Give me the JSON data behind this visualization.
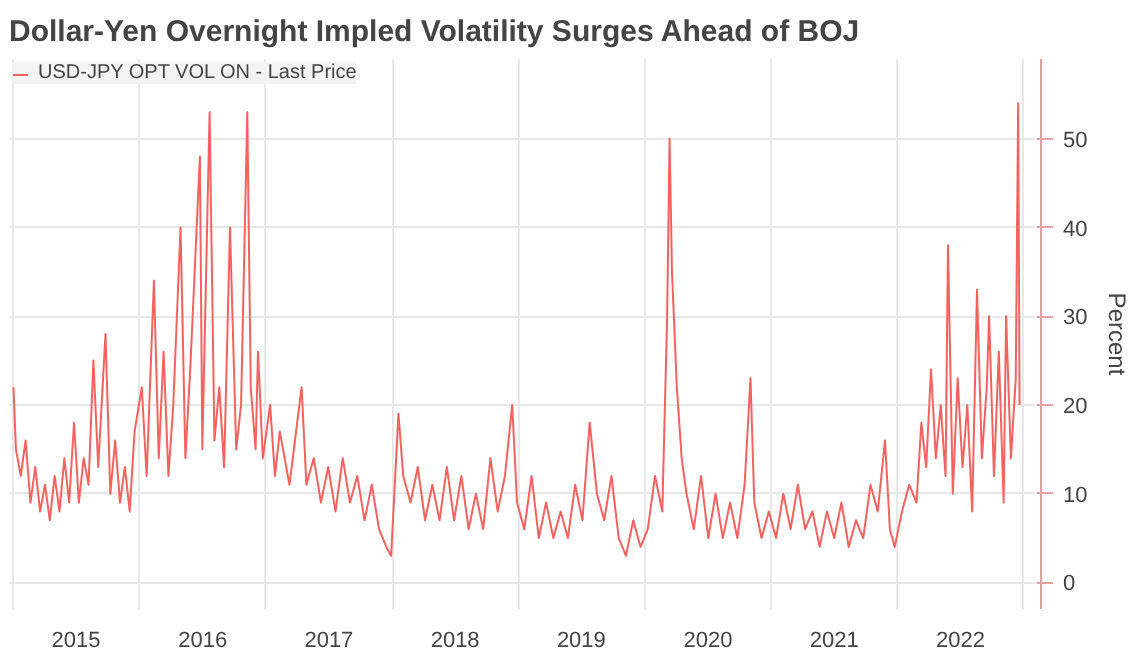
{
  "chart_data": {
    "type": "line",
    "title": "Dollar-Yen Overnight Impled Volatility Surges Ahead of BOJ",
    "ylabel": "Percent",
    "xlim": [
      "2014-12-20",
      "2023-02-20"
    ],
    "ylim": [
      -3,
      59
    ],
    "yticks": [
      0,
      10,
      20,
      30,
      40,
      50
    ],
    "xticks": [
      {
        "value": "2015-01-01",
        "label": null
      },
      {
        "value": "2015-07-02",
        "label": "2015"
      },
      {
        "value": "2016-01-01",
        "label": null
      },
      {
        "value": "2016-07-02",
        "label": "2016"
      },
      {
        "value": "2017-01-01",
        "label": null
      },
      {
        "value": "2017-07-02",
        "label": "2017"
      },
      {
        "value": "2018-01-01",
        "label": null
      },
      {
        "value": "2018-07-02",
        "label": "2018"
      },
      {
        "value": "2019-01-01",
        "label": null
      },
      {
        "value": "2019-07-02",
        "label": "2019"
      },
      {
        "value": "2020-01-01",
        "label": null
      },
      {
        "value": "2020-07-02",
        "label": "2020"
      },
      {
        "value": "2021-01-01",
        "label": null
      },
      {
        "value": "2021-07-02",
        "label": "2021"
      },
      {
        "value": "2022-01-01",
        "label": null
      },
      {
        "value": "2022-07-02",
        "label": "2022"
      },
      {
        "value": "2023-01-01",
        "label": null
      }
    ],
    "grid": true,
    "legend": "top left",
    "line_style": "solid",
    "marker": "none",
    "series": [
      {
        "name": "USD-JPY OPT VOL ON - Last Price",
        "color": "#f4625f",
        "x": [
          "2015-01-02",
          "2015-01-09",
          "2015-01-23",
          "2015-02-06",
          "2015-02-20",
          "2015-03-06",
          "2015-03-20",
          "2015-04-03",
          "2015-04-17",
          "2015-05-01",
          "2015-05-15",
          "2015-05-29",
          "2015-06-12",
          "2015-06-26",
          "2015-07-10",
          "2015-07-24",
          "2015-08-07",
          "2015-08-21",
          "2015-09-04",
          "2015-09-25",
          "2015-10-09",
          "2015-10-23",
          "2015-11-06",
          "2015-11-20",
          "2015-12-04",
          "2015-12-18",
          "2016-01-08",
          "2016-01-22",
          "2016-02-12",
          "2016-02-26",
          "2016-03-11",
          "2016-03-25",
          "2016-04-08",
          "2016-04-29",
          "2016-05-13",
          "2016-05-27",
          "2016-06-24",
          "2016-07-01",
          "2016-07-22",
          "2016-08-05",
          "2016-08-19",
          "2016-09-02",
          "2016-09-19",
          "2016-10-07",
          "2016-10-21",
          "2016-11-08",
          "2016-11-18",
          "2016-12-02",
          "2016-12-09",
          "2016-12-23",
          "2017-01-13",
          "2017-01-27",
          "2017-02-10",
          "2017-03-10",
          "2017-04-14",
          "2017-04-28",
          "2017-05-19",
          "2017-06-09",
          "2017-06-30",
          "2017-07-21",
          "2017-08-11",
          "2017-09-01",
          "2017-09-22",
          "2017-10-13",
          "2017-11-03",
          "2017-11-24",
          "2017-12-15",
          "2017-12-29",
          "2018-01-19",
          "2018-02-02",
          "2018-02-23",
          "2018-03-16",
          "2018-04-06",
          "2018-04-27",
          "2018-05-18",
          "2018-06-08",
          "2018-06-29",
          "2018-07-20",
          "2018-08-10",
          "2018-08-31",
          "2018-09-21",
          "2018-10-12",
          "2018-11-02",
          "2018-11-23",
          "2018-12-14",
          "2018-12-28",
          "2019-01-18",
          "2019-02-08",
          "2019-03-01",
          "2019-03-22",
          "2019-04-12",
          "2019-05-03",
          "2019-05-24",
          "2019-06-14",
          "2019-07-05",
          "2019-07-26",
          "2019-08-16",
          "2019-09-06",
          "2019-09-27",
          "2019-10-18",
          "2019-11-08",
          "2019-11-29",
          "2019-12-20",
          "2020-01-10",
          "2020-01-31",
          "2020-02-21",
          "2020-03-06",
          "2020-03-13",
          "2020-03-20",
          "2020-04-03",
          "2020-04-17",
          "2020-05-01",
          "2020-05-22",
          "2020-06-12",
          "2020-07-03",
          "2020-07-24",
          "2020-08-14",
          "2020-09-04",
          "2020-09-25",
          "2020-10-16",
          "2020-11-02",
          "2020-11-13",
          "2020-12-04",
          "2020-12-25",
          "2021-01-15",
          "2021-02-05",
          "2021-02-26",
          "2021-03-19",
          "2021-04-09",
          "2021-04-30",
          "2021-05-21",
          "2021-06-11",
          "2021-07-02",
          "2021-07-23",
          "2021-08-13",
          "2021-09-03",
          "2021-09-24",
          "2021-10-15",
          "2021-11-05",
          "2021-11-26",
          "2021-12-10",
          "2021-12-24",
          "2022-01-14",
          "2022-02-04",
          "2022-02-25",
          "2022-03-11",
          "2022-03-25",
          "2022-04-08",
          "2022-04-22",
          "2022-05-06",
          "2022-05-20",
          "2022-05-27",
          "2022-06-10",
          "2022-06-24",
          "2022-07-08",
          "2022-07-22",
          "2022-08-05",
          "2022-08-19",
          "2022-09-02",
          "2022-09-16",
          "2022-09-23",
          "2022-10-07",
          "2022-10-21",
          "2022-11-04",
          "2022-11-11",
          "2022-11-25",
          "2022-12-09",
          "2022-12-16",
          "2022-12-20"
        ],
        "values": [
          22,
          15,
          12,
          16,
          9,
          13,
          8,
          11,
          7,
          12,
          8,
          14,
          9,
          18,
          9,
          14,
          11,
          25,
          13,
          28,
          10,
          16,
          9,
          13,
          8,
          17,
          22,
          12,
          34,
          14,
          26,
          12,
          20,
          40,
          14,
          24,
          48,
          15,
          53,
          16,
          22,
          13,
          40,
          15,
          20,
          53,
          22,
          15,
          26,
          14,
          20,
          12,
          17,
          11,
          22,
          11,
          14,
          9,
          13,
          8,
          14,
          9,
          12,
          7,
          11,
          6,
          4,
          3,
          19,
          12,
          9,
          13,
          7,
          11,
          7,
          13,
          7,
          12,
          6,
          10,
          6,
          14,
          8,
          12,
          20,
          9,
          6,
          12,
          5,
          9,
          5,
          8,
          5,
          11,
          7,
          18,
          10,
          7,
          12,
          5,
          3,
          7,
          4,
          6,
          12,
          8,
          30,
          50,
          35,
          22,
          14,
          10,
          6,
          12,
          5,
          10,
          5,
          9,
          5,
          11,
          23,
          9,
          5,
          8,
          5,
          10,
          6,
          11,
          6,
          8,
          4,
          8,
          5,
          9,
          4,
          7,
          5,
          11,
          8,
          16,
          6,
          4,
          8,
          11,
          9,
          18,
          13,
          24,
          14,
          20,
          12,
          38,
          10,
          23,
          13,
          20,
          8,
          33,
          14,
          22,
          30,
          12,
          26,
          9,
          30,
          14,
          23,
          54,
          20
        ]
      }
    ]
  }
}
